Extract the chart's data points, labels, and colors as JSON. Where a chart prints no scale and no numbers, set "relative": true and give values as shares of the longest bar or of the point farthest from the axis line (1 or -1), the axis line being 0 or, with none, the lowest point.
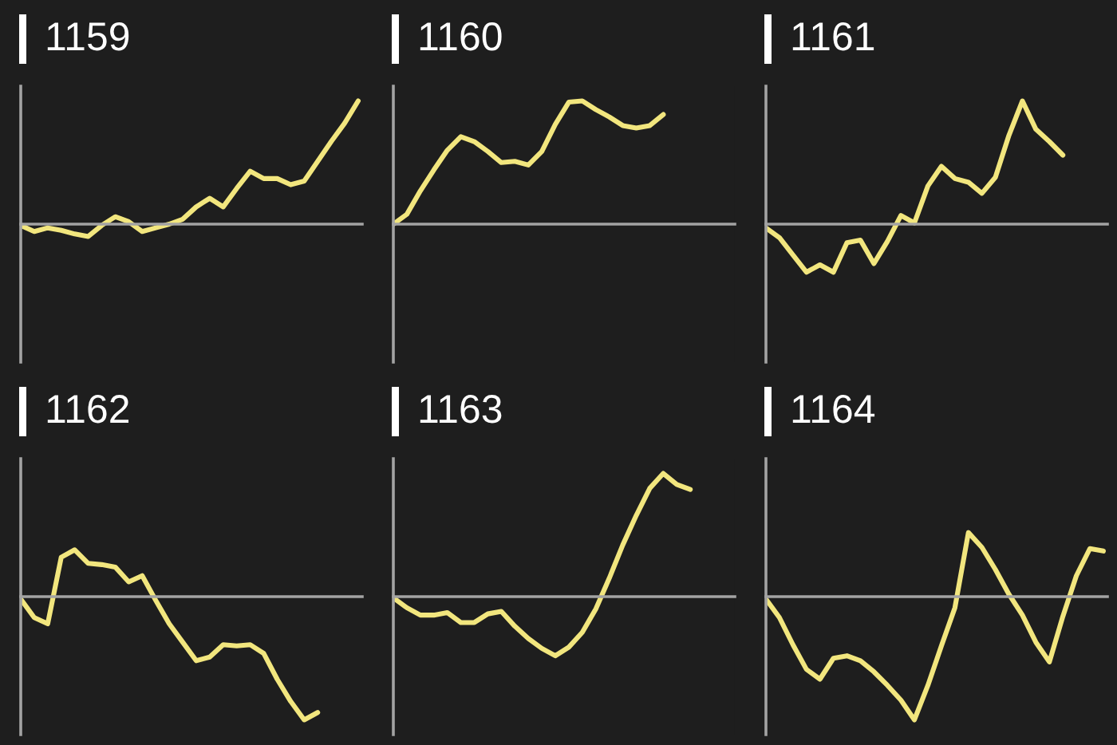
{
  "chart_data": [
    {
      "type": "line",
      "title": "1159",
      "relative": true,
      "categories": [
        null,
        null,
        null,
        null,
        null,
        null,
        null,
        null,
        null,
        null,
        null,
        null,
        null,
        null,
        null,
        null,
        null,
        null,
        null,
        null,
        null,
        null,
        null,
        null,
        null,
        null
      ],
      "series": [
        {
          "color": "#f2e67e",
          "values": [
            -0.01,
            -0.06,
            -0.03,
            -0.05,
            -0.08,
            -0.1,
            -0.01,
            0.06,
            0.02,
            -0.06,
            -0.03,
            0.0,
            0.04,
            0.14,
            0.21,
            0.14,
            0.29,
            0.43,
            0.37,
            0.37,
            0.32,
            0.35,
            0.51,
            0.67,
            0.82,
            1
          ]
        }
      ]
    },
    {
      "type": "line",
      "title": "1160",
      "relative": true,
      "categories": [
        null,
        null,
        null,
        null,
        null,
        null,
        null,
        null,
        null,
        null,
        null,
        null,
        null,
        null,
        null,
        null,
        null,
        null,
        null,
        null,
        null,
        null,
        null,
        null,
        null,
        null
      ],
      "series": [
        {
          "color": "#f2e67e",
          "values": [
            0,
            0.08,
            0.27,
            0.44,
            0.6,
            0.71,
            0.67,
            0.59,
            0.5,
            0.51,
            0.48,
            0.59,
            0.81,
            0.99,
            1,
            0.93,
            0.87,
            0.8,
            0.78,
            0.8,
            0.89,
            null,
            null,
            null,
            null,
            null
          ]
        }
      ]
    },
    {
      "type": "line",
      "title": "1161",
      "relative": true,
      "categories": [
        null,
        null,
        null,
        null,
        null,
        null,
        null,
        null,
        null,
        null,
        null,
        null,
        null,
        null,
        null,
        null,
        null,
        null,
        null,
        null,
        null,
        null,
        null,
        null,
        null,
        null
      ],
      "series": [
        {
          "color": "#f2e67e",
          "values": [
            -0.03,
            -0.11,
            -0.25,
            -0.39,
            -0.33,
            -0.39,
            -0.15,
            -0.13,
            -0.32,
            -0.14,
            0.07,
            0.01,
            0.31,
            0.47,
            0.37,
            0.34,
            0.25,
            0.38,
            0.72,
            1,
            0.77,
            0.67,
            0.56,
            null,
            null,
            null
          ]
        }
      ]
    },
    {
      "type": "line",
      "title": "1162",
      "relative": true,
      "categories": [
        null,
        null,
        null,
        null,
        null,
        null,
        null,
        null,
        null,
        null,
        null,
        null,
        null,
        null,
        null,
        null,
        null,
        null,
        null,
        null,
        null,
        null,
        null,
        null,
        null,
        null
      ],
      "series": [
        {
          "color": "#f2e67e",
          "values": [
            -0.02,
            -0.17,
            -0.22,
            0.32,
            0.38,
            0.27,
            0.26,
            0.24,
            0.12,
            0.17,
            -0.03,
            -0.22,
            -0.37,
            -0.52,
            -0.49,
            -0.39,
            -0.4,
            -0.39,
            -0.46,
            -0.67,
            -0.85,
            -1,
            -0.94,
            null,
            null,
            null
          ]
        }
      ]
    },
    {
      "type": "line",
      "title": "1163",
      "relative": true,
      "categories": [
        null,
        null,
        null,
        null,
        null,
        null,
        null,
        null,
        null,
        null,
        null,
        null,
        null,
        null,
        null,
        null,
        null,
        null,
        null,
        null,
        null,
        null,
        null,
        null,
        null,
        null
      ],
      "series": [
        {
          "color": "#f2e67e",
          "values": [
            -0.01,
            -0.09,
            -0.15,
            -0.15,
            -0.13,
            -0.21,
            -0.21,
            -0.14,
            -0.12,
            -0.24,
            -0.34,
            -0.42,
            -0.48,
            -0.41,
            -0.29,
            -0.1,
            0.15,
            0.42,
            0.66,
            0.88,
            1,
            0.91,
            0.87,
            null,
            null,
            null
          ]
        }
      ]
    },
    {
      "type": "line",
      "title": "1164",
      "relative": true,
      "categories": [
        null,
        null,
        null,
        null,
        null,
        null,
        null,
        null,
        null,
        null,
        null,
        null,
        null,
        null,
        null,
        null,
        null,
        null,
        null,
        null,
        null,
        null,
        null,
        null,
        null,
        null
      ],
      "series": [
        {
          "color": "#f2e67e",
          "values": [
            -0.02,
            -0.17,
            -0.39,
            -0.59,
            -0.67,
            -0.5,
            -0.48,
            -0.52,
            -0.61,
            -0.72,
            -0.84,
            -1,
            -0.72,
            -0.4,
            -0.09,
            0.52,
            0.4,
            0.22,
            0.02,
            -0.15,
            -0.37,
            -0.53,
            -0.16,
            0.17,
            0.39,
            0.37
          ]
        }
      ]
    }
  ]
}
